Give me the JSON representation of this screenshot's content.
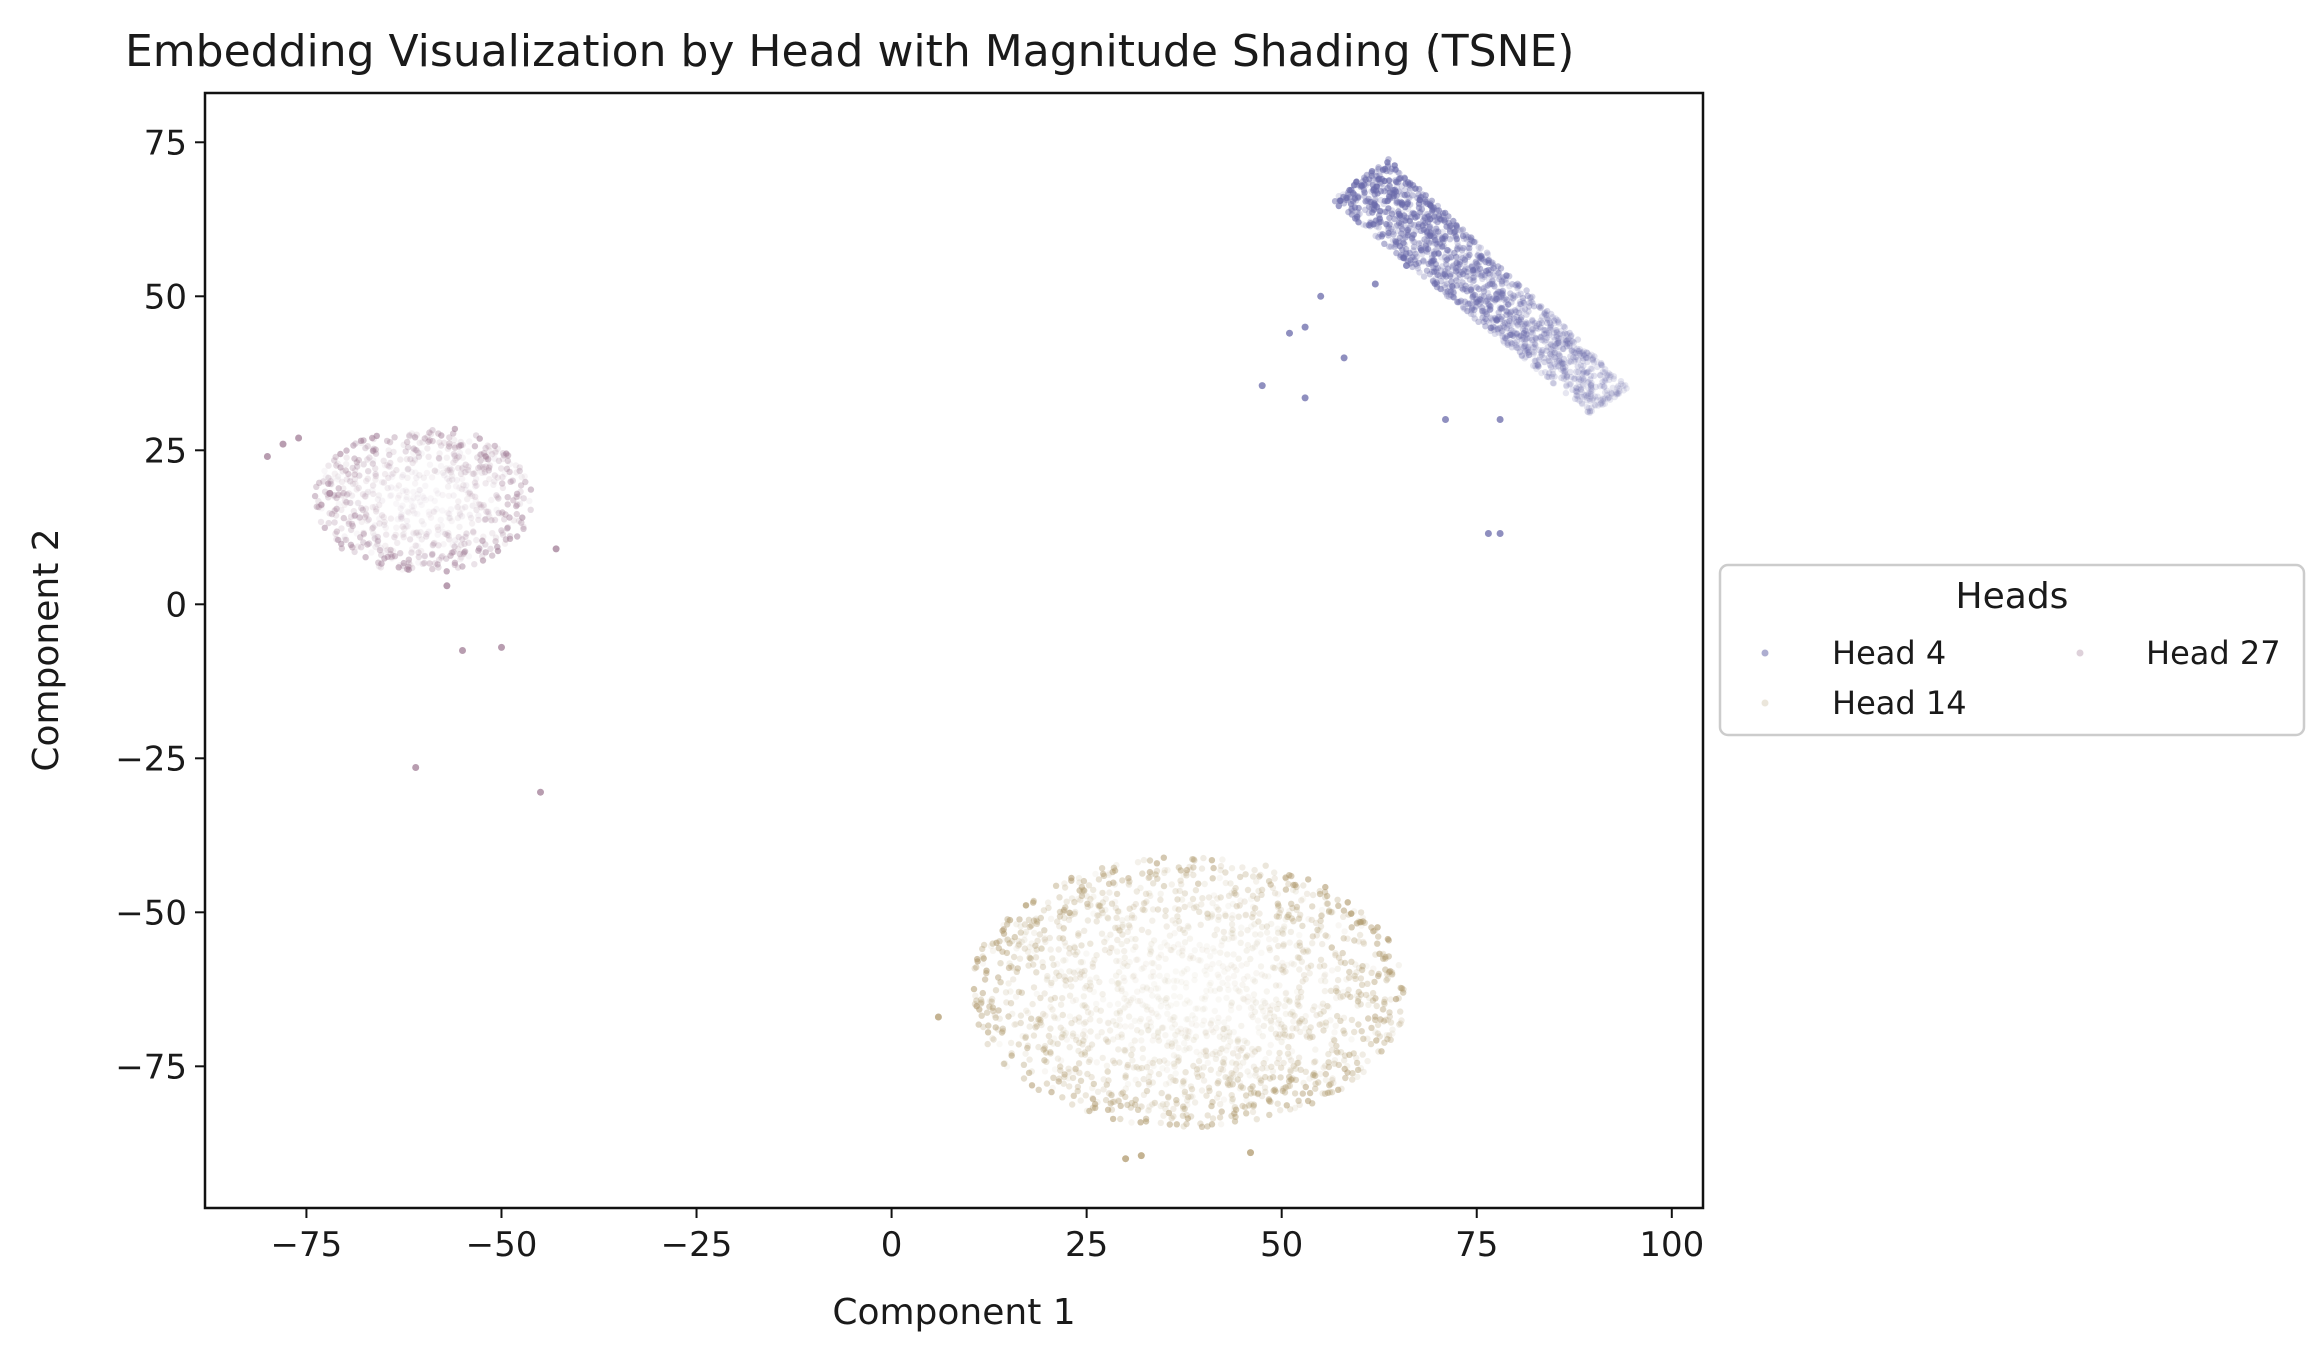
{
  "chart_data": {
    "type": "scatter",
    "title": "Embedding Visualization by Head with Magnitude Shading (TSNE)",
    "xlabel": "Component 1",
    "ylabel": "Component 2",
    "xlim": [
      -88,
      104
    ],
    "ylim": [
      -98,
      83
    ],
    "xticks": [
      -75,
      -50,
      -25,
      0,
      25,
      50,
      75,
      100
    ],
    "yticks": [
      75,
      50,
      25,
      0,
      -25,
      -50,
      -75
    ],
    "xtick_labels": [
      "−75",
      "−50",
      "−25",
      "0",
      "25",
      "50",
      "75",
      "100"
    ],
    "ytick_labels": [
      "75",
      "50",
      "25",
      "0",
      "−25",
      "−50",
      "−75"
    ],
    "grid": false,
    "legend": {
      "title": "Heads",
      "placement": "outside-right",
      "columns": 2,
      "entries": [
        "Head 4",
        "Head 14",
        "Head 27"
      ]
    },
    "series": [
      {
        "name": "Head 4",
        "color": "#6a6aaa",
        "cluster": {
          "shape": "band",
          "from": [
            60,
            69
          ],
          "to": [
            92,
            33
          ],
          "half_width": 5,
          "count": 1400
        },
        "outliers": [
          [
            47.5,
            35.5
          ],
          [
            53,
            33.5
          ],
          [
            58,
            40
          ],
          [
            71,
            30
          ],
          [
            76.5,
            11.5
          ],
          [
            78,
            11.5
          ],
          [
            53,
            45
          ],
          [
            51,
            44
          ],
          [
            55,
            50
          ],
          [
            62,
            52
          ],
          [
            66,
            55
          ],
          [
            78,
            30
          ]
        ]
      },
      {
        "name": "Head 14",
        "color": "#b09a6e",
        "cluster": {
          "shape": "blob",
          "center": [
            38,
            -63
          ],
          "radii": [
            28,
            22
          ],
          "count": 1800
        },
        "outliers": [
          [
            6,
            -67
          ],
          [
            30,
            -90
          ],
          [
            32,
            -89.5
          ],
          [
            46,
            -89
          ]
        ]
      },
      {
        "name": "Head 27",
        "color": "#a07c96",
        "cluster": {
          "shape": "blob",
          "center": [
            -60,
            17
          ],
          "radii": [
            14,
            12
          ],
          "count": 700
        },
        "outliers": [
          [
            -78,
            26
          ],
          [
            -80,
            24
          ],
          [
            -76,
            27
          ],
          [
            -55,
            -7.5
          ],
          [
            -50,
            -7
          ],
          [
            -61,
            -26.5
          ],
          [
            -45,
            -30.5
          ],
          [
            -57,
            3
          ],
          [
            -72,
            18
          ],
          [
            -43,
            9
          ]
        ]
      }
    ]
  }
}
